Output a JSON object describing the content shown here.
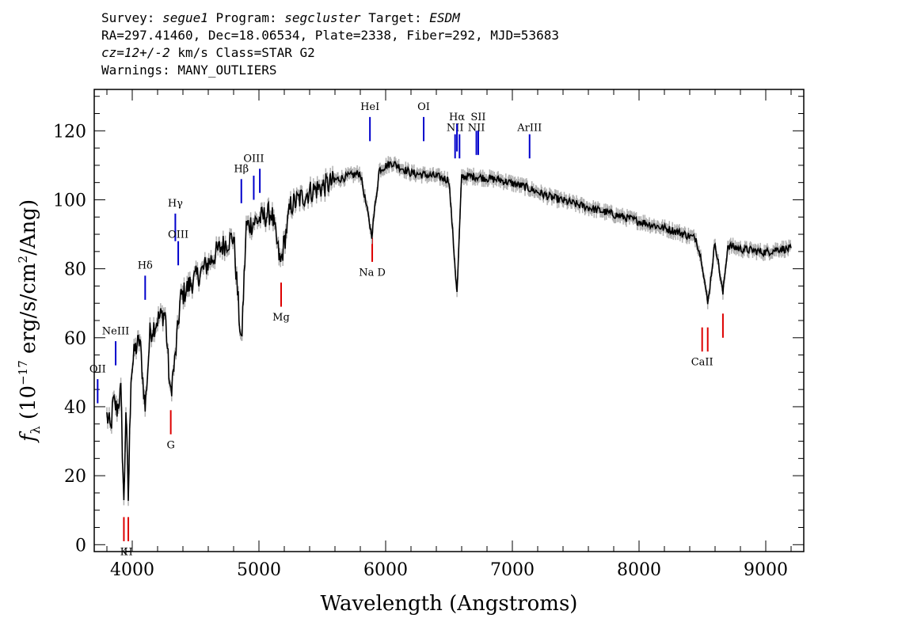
{
  "header": {
    "line1": {
      "survey_label": "Survey:",
      "survey": "segue1",
      "program_label": "Program:",
      "program": "segcluster",
      "target_label": "Target:",
      "target": "ESDM"
    },
    "line2": "RA=297.41460, Dec=18.06534, Plate=2338, Fiber=292, MJD=53683",
    "line3": {
      "cz": "cz=12+/-2",
      "rest": " km/s Class=STAR G2"
    },
    "line4": "Warnings: MANY_OUTLIERS"
  },
  "chart_data": {
    "type": "line",
    "xlabel": "Wavelength (Angstroms)",
    "ylabel_parts": {
      "f": "f",
      "lambda": "λ",
      "open": " (10",
      "exp": "−17",
      "mid": " erg/s/cm",
      "sq": "2",
      "close": "/Ang)"
    },
    "xlim": [
      3700,
      9300
    ],
    "ylim": [
      -2,
      132
    ],
    "xticks": [
      4000,
      5000,
      6000,
      7000,
      8000,
      9000
    ],
    "yticks": [
      0,
      20,
      40,
      60,
      80,
      100,
      120
    ],
    "series_color": "#000000",
    "error_color": "#b0b0b0",
    "spectrum": {
      "x": [
        3800,
        3830,
        3850,
        3880,
        3910,
        3934,
        3950,
        3969,
        3990,
        4020,
        4060,
        4102,
        4140,
        4200,
        4260,
        4300,
        4340,
        4380,
        4450,
        4550,
        4700,
        4800,
        4861,
        4900,
        5000,
        5100,
        5170,
        5250,
        5400,
        5600,
        5800,
        5890,
        5950,
        6050,
        6200,
        6400,
        6500,
        6563,
        6600,
        6700,
        6900,
        7100,
        7300,
        7500,
        7700,
        7900,
        8100,
        8300,
        8450,
        8498,
        8542,
        8600,
        8662,
        8700,
        8800,
        9000,
        9100,
        9200
      ],
      "y": [
        38,
        34,
        42,
        40,
        45,
        12,
        40,
        14,
        50,
        57,
        60,
        40,
        62,
        66,
        68,
        44,
        55,
        72,
        76,
        80,
        87,
        90,
        58,
        93,
        95,
        97,
        82,
        99,
        103,
        106,
        108,
        90,
        109,
        111,
        108,
        107,
        106,
        73,
        107,
        107,
        106,
        104,
        101,
        99,
        97,
        95,
        93,
        91,
        89,
        82,
        70,
        88,
        73,
        87,
        86,
        85,
        86,
        86
      ]
    },
    "emission_lines": [
      {
        "label": "OII",
        "x": 3727,
        "y1": 41,
        "y2": 48,
        "label_y": 50
      },
      {
        "label": "NeIII",
        "x": 3869,
        "y1": 52,
        "y2": 59,
        "label_y": 61
      },
      {
        "label": "Hδ",
        "x": 4102,
        "y1": 71,
        "y2": 78,
        "label_y": 80
      },
      {
        "label": "Hγ",
        "x": 4340,
        "y1": 88,
        "y2": 96,
        "label_y": 98
      },
      {
        "label": "OIII",
        "x": 4363,
        "y1": 81,
        "y2": 88,
        "label_y": 89
      },
      {
        "label": "Hβ",
        "x": 4861,
        "y1": 99,
        "y2": 106,
        "label_y": 108
      },
      {
        "label": "OIII",
        "x": 4959,
        "y1": 100,
        "y2": 107,
        "label_y": 111
      },
      {
        "label": "",
        "x": 5007,
        "y1": 102,
        "y2": 109,
        "label_y": 0
      },
      {
        "label": "HeI",
        "x": 5876,
        "y1": 117,
        "y2": 124,
        "label_y": 126
      },
      {
        "label": "OI",
        "x": 6300,
        "y1": 117,
        "y2": 124,
        "label_y": 126
      },
      {
        "label": "NII",
        "x": 6548,
        "y1": 112,
        "y2": 119,
        "label_y": 120
      },
      {
        "label": "Hα",
        "x": 6563,
        "y1": 114,
        "y2": 122,
        "label_y": 123
      },
      {
        "label": "",
        "x": 6583,
        "y1": 112,
        "y2": 119,
        "label_y": 0
      },
      {
        "label": "NII",
        "x": 6716,
        "y1": 113,
        "y2": 120,
        "label_y": 120
      },
      {
        "label": "SII",
        "x": 6731,
        "y1": 113,
        "y2": 120,
        "label_y": 123
      },
      {
        "label": "ArIII",
        "x": 7136,
        "y1": 112,
        "y2": 119,
        "label_y": 120
      }
    ],
    "absorption_lines": [
      {
        "label": "K",
        "x": 3934,
        "y1": 1,
        "y2": 8,
        "label_y": -3
      },
      {
        "label": "H",
        "x": 3969,
        "y1": 1,
        "y2": 8,
        "label_y": -3
      },
      {
        "label": "G",
        "x": 4304,
        "y1": 32,
        "y2": 39,
        "label_y": 28
      },
      {
        "label": "Mg",
        "x": 5175,
        "y1": 69,
        "y2": 76,
        "label_y": 65
      },
      {
        "label": "Na D",
        "x": 5894,
        "y1": 82,
        "y2": 89,
        "label_y": 78
      },
      {
        "label": "CaII",
        "x": 8498,
        "y1": 56,
        "y2": 63,
        "label_y": 52
      },
      {
        "label": "",
        "x": 8542,
        "y1": 56,
        "y2": 63,
        "label_y": 0
      },
      {
        "label": "",
        "x": 8662,
        "y1": 60,
        "y2": 67,
        "label_y": 0
      }
    ],
    "emission_color": "#0000cc",
    "absorption_color": "#dd0000"
  }
}
